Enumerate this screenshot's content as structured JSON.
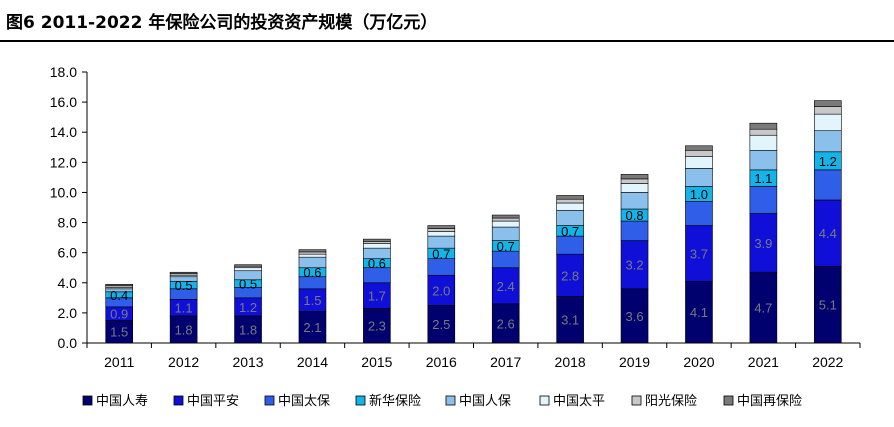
{
  "header": {
    "title": "图6   2011-2022 年保险公司的投资资产规模（万亿元）"
  },
  "chart_data": {
    "type": "bar",
    "stacked": true,
    "title": "",
    "xlabel": "",
    "ylabel": "",
    "ylim": [
      0,
      18
    ],
    "ytick_step": 2,
    "ytick_labels": [
      "0.0",
      "2.0",
      "4.0",
      "6.0",
      "8.0",
      "10.0",
      "12.0",
      "14.0",
      "16.0",
      "18.0"
    ],
    "grid": false,
    "legend_position": "bottom",
    "categories": [
      "2011",
      "2012",
      "2013",
      "2014",
      "2015",
      "2016",
      "2017",
      "2018",
      "2019",
      "2020",
      "2021",
      "2022"
    ],
    "series": [
      {
        "name": "中国人寿",
        "color": "#00006e",
        "label_color": "#7a7a7a",
        "values": [
          1.5,
          1.8,
          1.8,
          2.1,
          2.3,
          2.5,
          2.6,
          3.1,
          3.6,
          4.1,
          4.7,
          5.1
        ],
        "labels_shown": true
      },
      {
        "name": "中国平安",
        "color": "#0f0fd8",
        "label_color": "#7a7a7a",
        "values": [
          0.9,
          1.1,
          1.2,
          1.5,
          1.7,
          2.0,
          2.4,
          2.8,
          3.2,
          3.7,
          3.9,
          4.4
        ],
        "labels_shown": true
      },
      {
        "name": "中国太保",
        "color": "#2f5fe8",
        "label_color": "#000000",
        "values": [
          0.6,
          0.7,
          0.7,
          0.8,
          1.0,
          1.1,
          1.1,
          1.2,
          1.3,
          1.6,
          1.8,
          2.0
        ],
        "labels_shown": false
      },
      {
        "name": "新华保险",
        "color": "#14b4e8",
        "label_color": "#000000",
        "values": [
          0.4,
          0.5,
          0.5,
          0.6,
          0.6,
          0.7,
          0.7,
          0.7,
          0.8,
          1.0,
          1.1,
          1.2
        ],
        "labels_shown": true
      },
      {
        "name": "中国人保",
        "color": "#8cc0ec",
        "label_color": "#000000",
        "values": [
          0.2,
          0.3,
          0.6,
          0.7,
          0.7,
          0.8,
          0.9,
          1.0,
          1.1,
          1.2,
          1.3,
          1.4
        ],
        "labels_shown": false
      },
      {
        "name": "中国太平",
        "color": "#e2f4fc",
        "label_color": "#000000",
        "values": [
          0.1,
          0.1,
          0.2,
          0.2,
          0.3,
          0.3,
          0.4,
          0.5,
          0.6,
          0.8,
          1.0,
          1.1
        ],
        "labels_shown": false
      },
      {
        "name": "阳光保险",
        "color": "#c8c8c8",
        "label_color": "#000000",
        "values": [
          0.1,
          0.1,
          0.1,
          0.15,
          0.15,
          0.2,
          0.2,
          0.25,
          0.3,
          0.4,
          0.4,
          0.5
        ],
        "labels_shown": false
      },
      {
        "name": "中国再保险",
        "color": "#7a7a7a",
        "label_color": "#000000",
        "values": [
          0.1,
          0.1,
          0.1,
          0.15,
          0.15,
          0.2,
          0.2,
          0.25,
          0.3,
          0.3,
          0.4,
          0.4
        ],
        "labels_shown": false
      }
    ]
  }
}
